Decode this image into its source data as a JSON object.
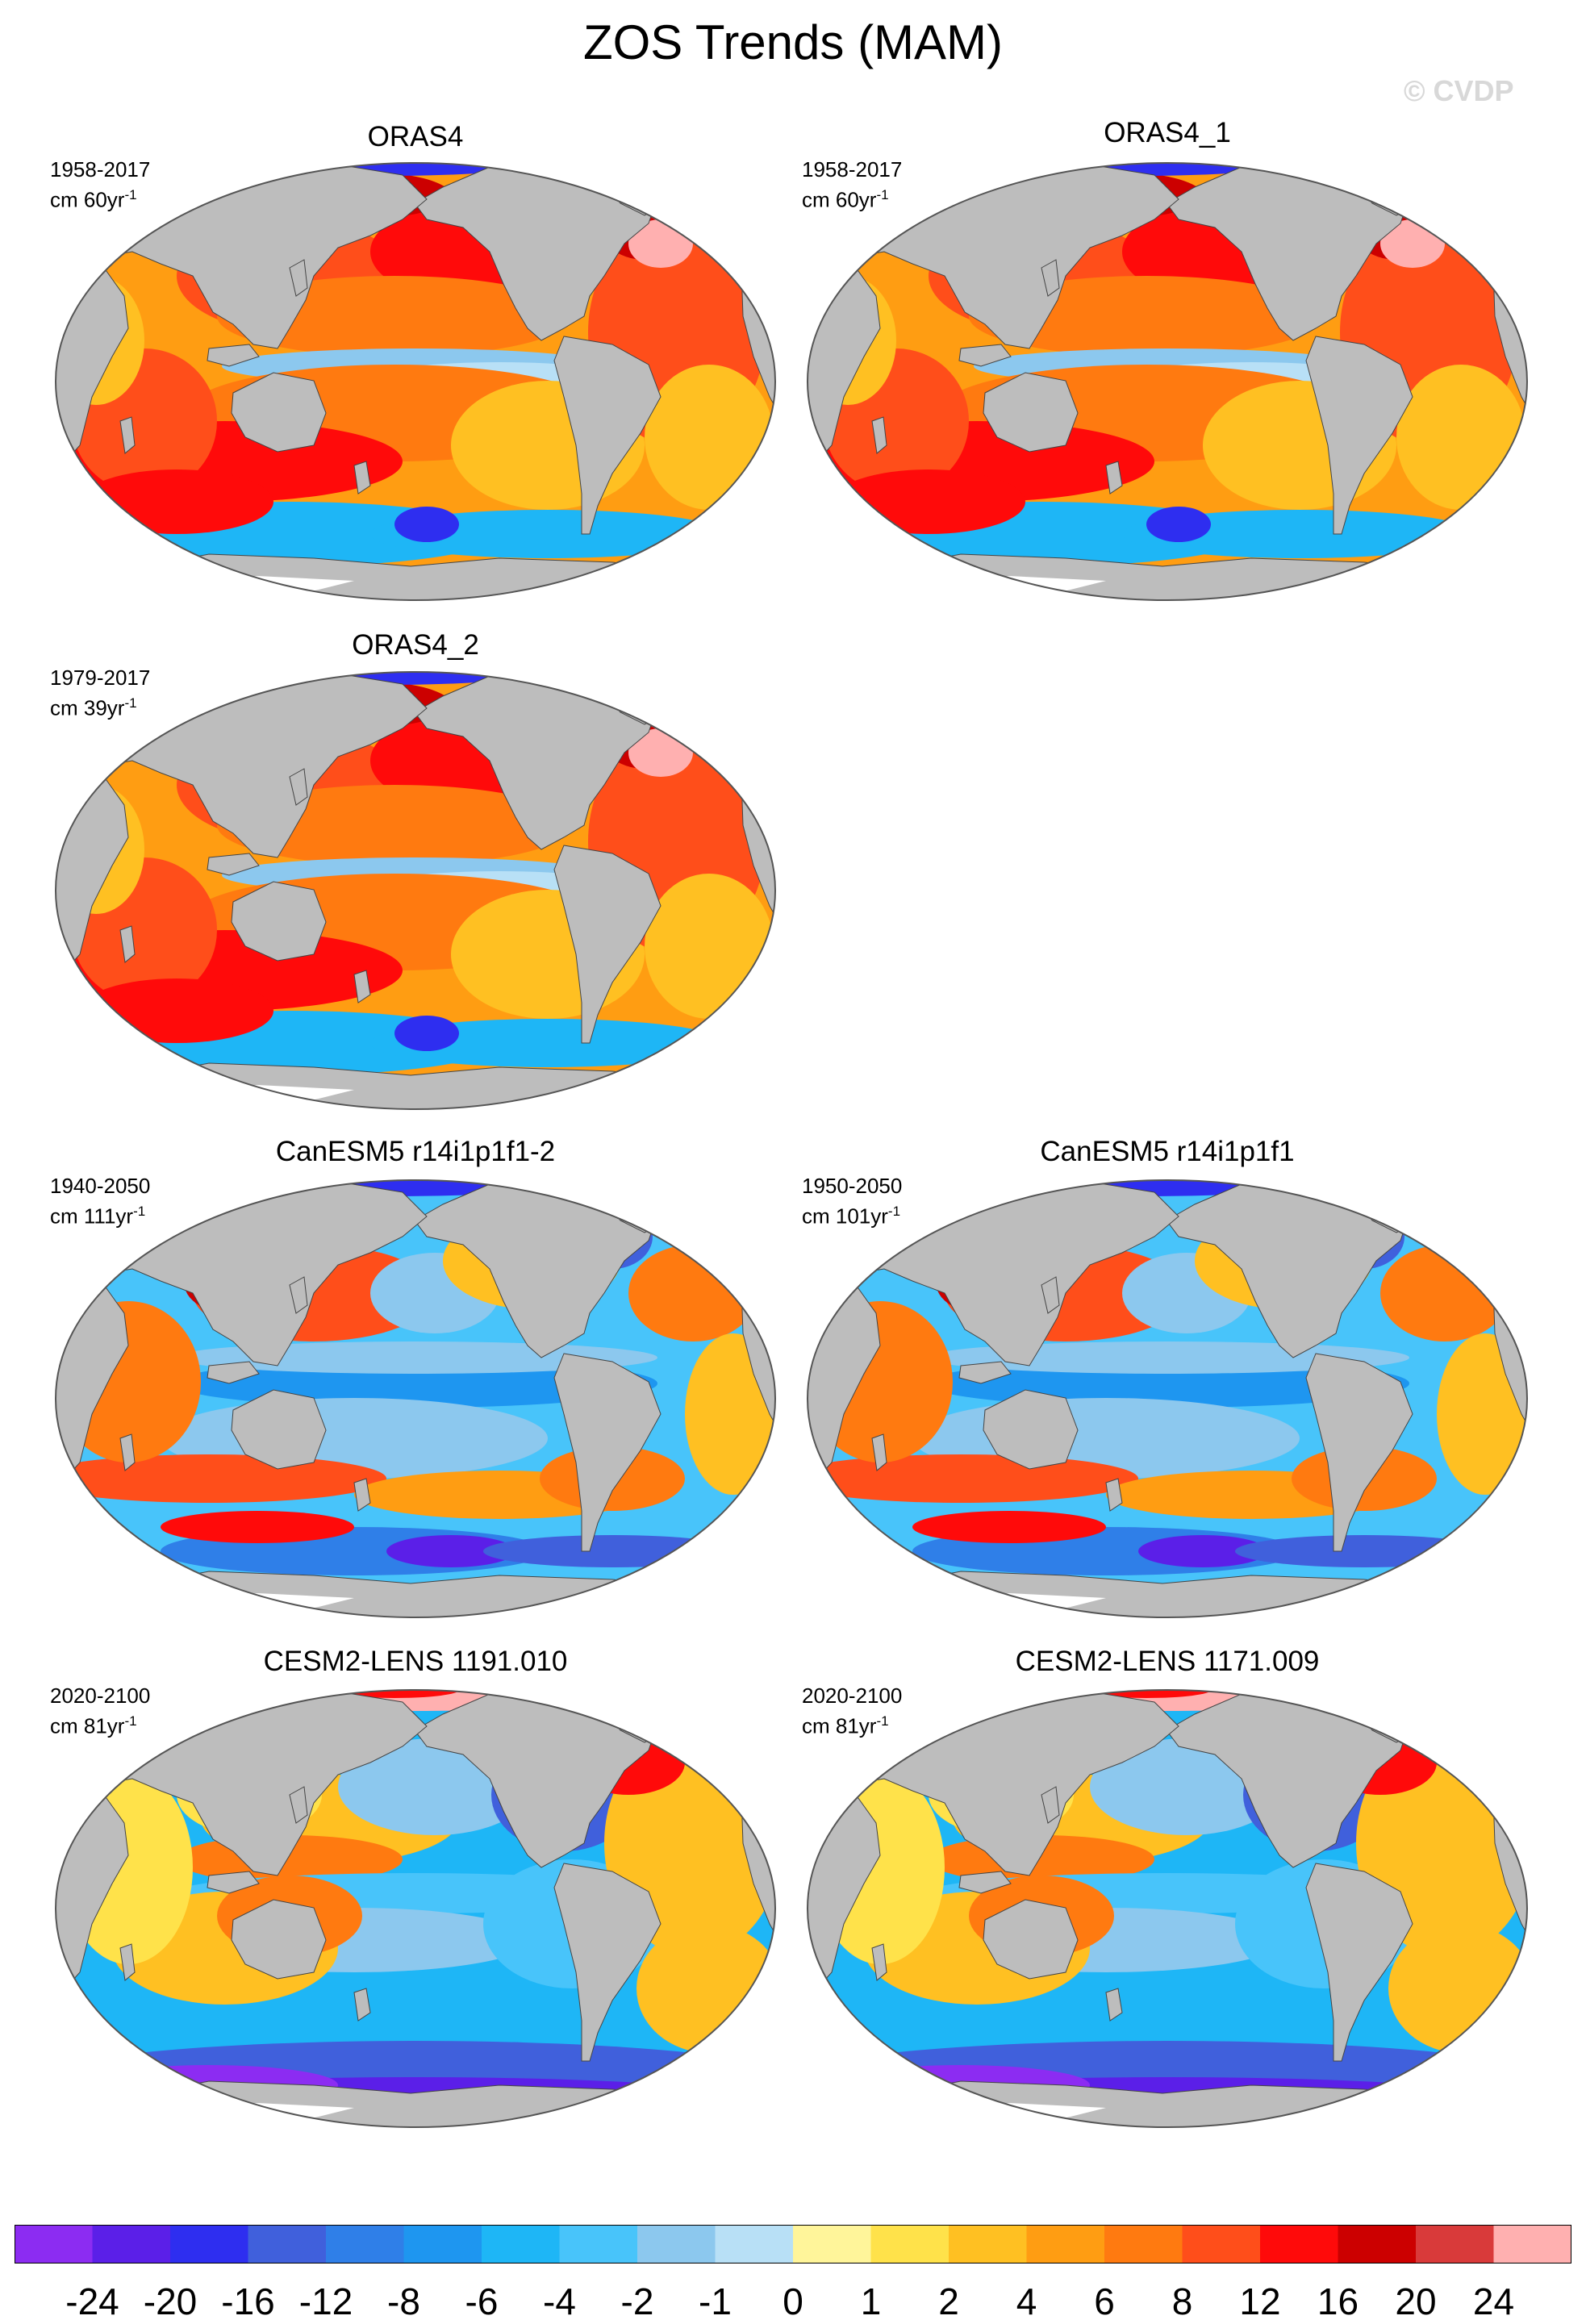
{
  "title": "ZOS Trends (MAM)",
  "watermark": "© CVDP",
  "panels": [
    {
      "title": "ORAS4",
      "period": "1958-2017",
      "units": "cm 60yr",
      "units_sup": "-1",
      "regime": "warm"
    },
    {
      "title": "ORAS4_1",
      "period": "1958-2017",
      "units": "cm 60yr",
      "units_sup": "-1",
      "regime": "warm"
    },
    {
      "title": "ORAS4_2",
      "period": "1979-2017",
      "units": "cm 39yr",
      "units_sup": "-1",
      "regime": "warm"
    },
    {
      "title": "CanESM5 r14i1p1f1-2",
      "period": "1940-2050",
      "units": "cm 111yr",
      "units_sup": "-1",
      "regime": "mixed"
    },
    {
      "title": "CanESM5 r14i1p1f1",
      "period": "1950-2050",
      "units": "cm 101yr",
      "units_sup": "-1",
      "regime": "mixed"
    },
    {
      "title": "CESM2-LENS 1191.010",
      "period": "2020-2100",
      "units": "cm 81yr",
      "units_sup": "-1",
      "regime": "future"
    },
    {
      "title": "CESM2-LENS 1171.009",
      "period": "2020-2100",
      "units": "cm 81yr",
      "units_sup": "-1",
      "regime": "future"
    }
  ],
  "colorbar": {
    "colors": [
      "#8c2cf2",
      "#5b1fe8",
      "#2e2ef0",
      "#4060dc",
      "#2f7fe8",
      "#1e96f0",
      "#1eb6f6",
      "#48c4fa",
      "#8cc8ee",
      "#b8e0f6",
      "#fff59a",
      "#ffe24a",
      "#ffc022",
      "#ff9d12",
      "#ff7a10",
      "#ff4e1a",
      "#ff0a0a",
      "#cc0000",
      "#d93a3a",
      "#ffb0b0"
    ],
    "labels": [
      "-24",
      "-20",
      "-16",
      "-12",
      "-8",
      "-6",
      "-4",
      "-2",
      "-1",
      "0",
      "1",
      "2",
      "4",
      "6",
      "8",
      "12",
      "16",
      "20",
      "24"
    ]
  },
  "map_colors": {
    "land": "#bdbdbd",
    "ice": "#ffffff",
    "outline": "#555555"
  }
}
